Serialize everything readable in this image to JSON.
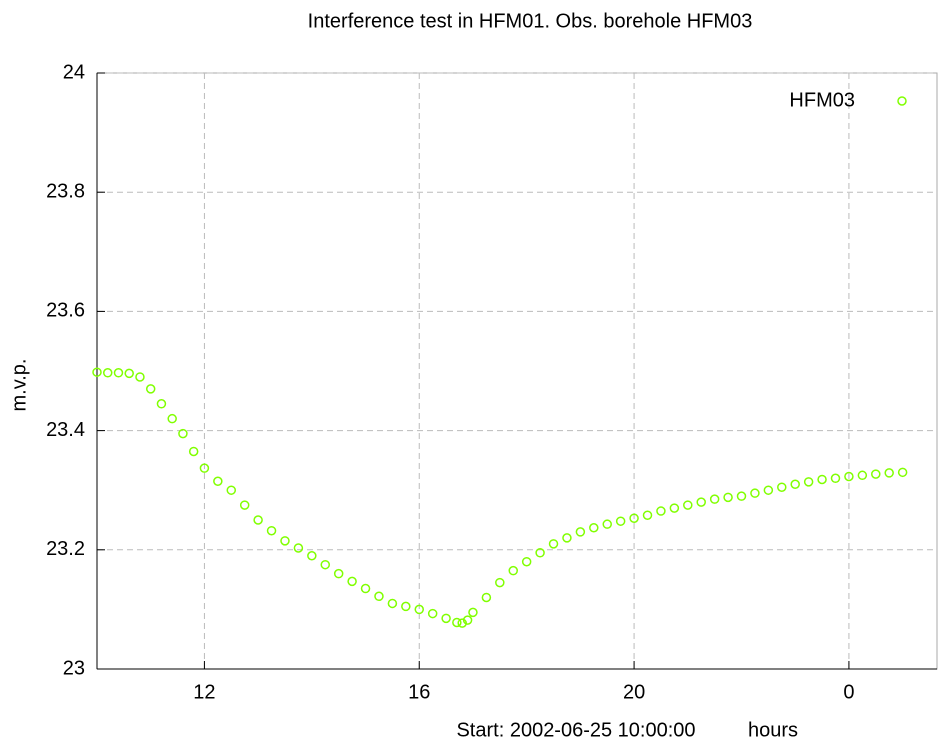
{
  "chart_data": {
    "type": "scatter",
    "title": "Interference test in HFM01. Obs. borehole HFM03",
    "x_label": "Start: 2002-06-25 10:00:00",
    "x_unit": "hours",
    "y_label": "m.v.p.",
    "xlim": [
      10,
      25.64
    ],
    "xticks": [
      12,
      16,
      20,
      {
        "value": 24,
        "label": "0"
      }
    ],
    "ylim": [
      23,
      24
    ],
    "yticks": [
      23,
      23.2,
      23.4,
      23.6,
      23.8,
      24
    ],
    "grid": true,
    "legend": "upper right",
    "series": [
      {
        "name": "HFM03",
        "color": "#80ff00",
        "x": [
          10.0,
          10.2,
          10.4,
          10.6,
          10.8,
          11.0,
          11.2,
          11.4,
          11.6,
          11.8,
          12.0,
          12.25,
          12.5,
          12.75,
          13.0,
          13.25,
          13.5,
          13.75,
          14.0,
          14.25,
          14.5,
          14.75,
          15.0,
          15.25,
          15.5,
          15.75,
          16.0,
          16.25,
          16.5,
          16.7,
          16.8,
          16.9,
          17.0,
          17.25,
          17.5,
          17.75,
          18.0,
          18.25,
          18.5,
          18.75,
          19.0,
          19.25,
          19.5,
          19.75,
          20.0,
          20.25,
          20.5,
          20.75,
          21.0,
          21.25,
          21.5,
          21.75,
          22.0,
          22.25,
          22.5,
          22.75,
          23.0,
          23.25,
          23.5,
          23.75,
          24.0,
          24.25,
          24.5,
          24.75,
          25.0
        ],
        "values": [
          23.498,
          23.497,
          23.497,
          23.496,
          23.49,
          23.47,
          23.445,
          23.42,
          23.395,
          23.365,
          23.337,
          23.315,
          23.3,
          23.275,
          23.25,
          23.232,
          23.215,
          23.203,
          23.19,
          23.175,
          23.16,
          23.147,
          23.135,
          23.122,
          23.11,
          23.105,
          23.1,
          23.093,
          23.085,
          23.078,
          23.077,
          23.082,
          23.095,
          23.12,
          23.145,
          23.165,
          23.18,
          23.195,
          23.21,
          23.22,
          23.23,
          23.237,
          23.243,
          23.248,
          23.253,
          23.258,
          23.265,
          23.27,
          23.275,
          23.28,
          23.285,
          23.288,
          23.29,
          23.295,
          23.3,
          23.305,
          23.31,
          23.314,
          23.318,
          23.32,
          23.323,
          23.325,
          23.327,
          23.329,
          23.33
        ]
      }
    ]
  }
}
